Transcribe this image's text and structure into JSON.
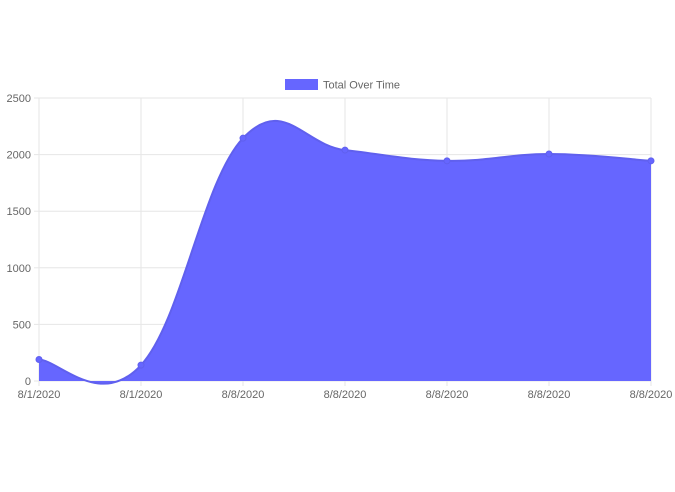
{
  "colors": {
    "series_fill": "#6666ff",
    "series_line": "#6060ee",
    "grid": "#e6e6e6",
    "axis_text": "#666666"
  },
  "chart_data": {
    "type": "area",
    "categories": [
      "8/1/2020",
      "8/1/2020",
      "8/8/2020",
      "8/8/2020",
      "8/8/2020",
      "8/8/2020",
      "8/8/2020"
    ],
    "series": [
      {
        "name": "Total Over Time",
        "values": [
          190,
          140,
          2145,
          2040,
          1945,
          2005,
          1945
        ]
      }
    ],
    "y_ticks": [
      "0",
      "500",
      "1000",
      "1500",
      "2000",
      "2500"
    ],
    "ylim": [
      0,
      2500
    ],
    "grid": true,
    "legend_position": "top-center"
  }
}
